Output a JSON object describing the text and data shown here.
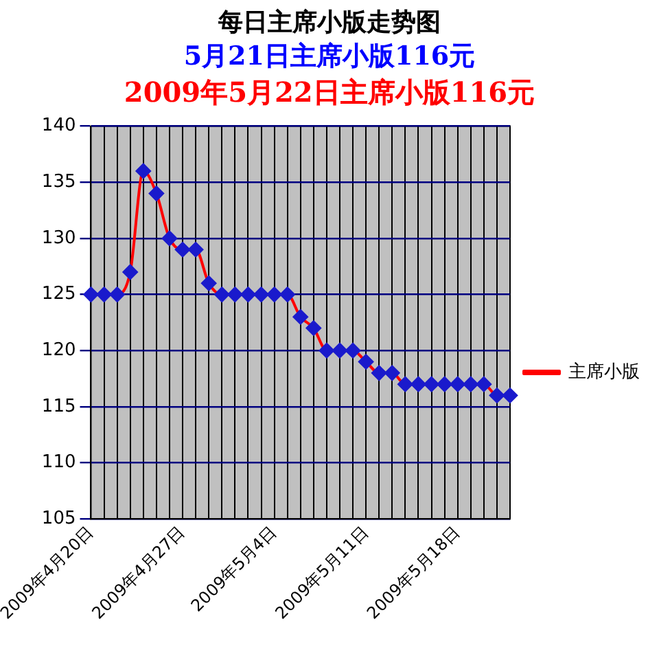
{
  "chart_data": {
    "type": "line",
    "title": "每日主席小版走势图",
    "subtitle": "5月21日主席小版116元",
    "annotations": [
      "2009年5月22日主席小版116元"
    ],
    "categories": [
      "2009年4月20日",
      null,
      null,
      null,
      null,
      null,
      null,
      "2009年4月27日",
      null,
      null,
      null,
      null,
      null,
      null,
      "2009年5月4日",
      null,
      null,
      null,
      null,
      null,
      null,
      "2009年5月11日",
      null,
      null,
      null,
      null,
      null,
      null,
      "2009年5月18日",
      null,
      null,
      null,
      null
    ],
    "series": [
      {
        "name": "主席小版",
        "color": "#ff0000",
        "values": [
          125,
          125,
          125,
          127,
          136,
          134,
          130,
          129,
          129,
          126,
          125,
          125,
          125,
          125,
          125,
          125,
          123,
          122,
          120,
          120,
          120,
          119,
          118,
          118,
          117,
          117,
          117,
          117,
          117,
          117,
          117,
          116,
          116
        ]
      }
    ],
    "ylim": [
      105,
      140
    ],
    "yticks": [
      105,
      110,
      115,
      120,
      125,
      130,
      135,
      140
    ],
    "grid": true,
    "legend": "right",
    "marker": "diamond",
    "line_style": "solid"
  }
}
